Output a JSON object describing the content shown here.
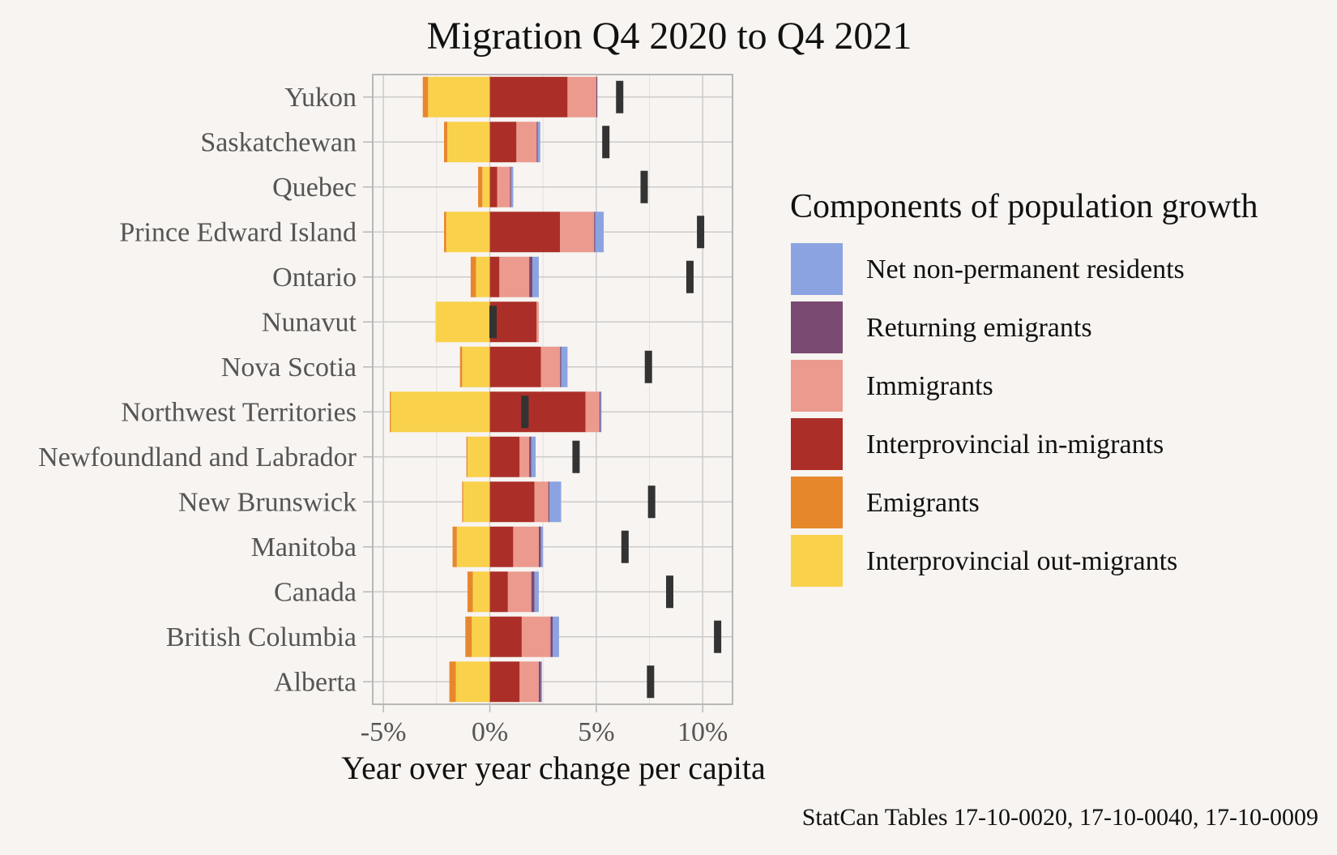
{
  "colors": {
    "background": "#f7f4f1",
    "grid": "#cccccc",
    "panel_border": "#b8b8b8",
    "net_change_marker": "#333333",
    "tick_label": "#555555"
  },
  "chart_data": {
    "type": "bar",
    "orientation": "horizontal",
    "stacked": "diverging",
    "title": "Migration Q4 2020 to Q4 2021",
    "xlabel": "Year over year change per capita",
    "ylabel": "",
    "caption": "StatCan Tables 17-10-0020, 17-10-0040, 17-10-0009",
    "xlim": [
      -5.5,
      11.4
    ],
    "x_ticks": [
      -5,
      0,
      5,
      10
    ],
    "x_tick_labels": [
      "-5%",
      "0%",
      "5%",
      "10%"
    ],
    "unit": "%",
    "grid": true,
    "legend_title": "Components of population growth",
    "legend_position": "right",
    "categories": [
      "Yukon",
      "Saskatchewan",
      "Quebec",
      "Prince Edward Island",
      "Ontario",
      "Nunavut",
      "Nova Scotia",
      "Northwest Territories",
      "Newfoundland and Labrador",
      "New Brunswick",
      "Manitoba",
      "Canada",
      "British Columbia",
      "Alberta"
    ],
    "series": [
      {
        "name": "Net non-permanent residents",
        "color": "#8ba3e0",
        "values": [
          0.0,
          0.12,
          0.1,
          0.4,
          0.3,
          0.0,
          0.3,
          0.05,
          0.2,
          0.55,
          0.1,
          0.2,
          0.3,
          0.05
        ]
      },
      {
        "name": "Returning emigrants",
        "color": "#7b4a73",
        "values": [
          0.05,
          0.05,
          0.05,
          0.05,
          0.15,
          0.0,
          0.05,
          0.05,
          0.1,
          0.05,
          0.1,
          0.15,
          0.1,
          0.1
        ]
      },
      {
        "name": "Immigrants",
        "color": "#ec9a8e",
        "values": [
          1.35,
          0.95,
          0.6,
          1.6,
          1.4,
          0.1,
          0.9,
          0.65,
          0.45,
          0.65,
          1.2,
          1.1,
          1.35,
          0.9
        ]
      },
      {
        "name": "Interprovincial in-migrants",
        "color": "#ab2f28",
        "values": [
          3.65,
          1.25,
          0.35,
          3.3,
          0.45,
          2.2,
          2.4,
          4.5,
          1.4,
          2.1,
          1.1,
          0.85,
          1.5,
          1.4
        ]
      },
      {
        "name": "Emigrants",
        "color": "#e7872c",
        "values": [
          -0.25,
          -0.15,
          -0.2,
          -0.1,
          -0.25,
          0.0,
          -0.1,
          -0.05,
          -0.05,
          -0.05,
          -0.2,
          -0.25,
          -0.3,
          -0.3
        ]
      },
      {
        "name": "Interprovincial out-migrants",
        "color": "#f9d14b",
        "values": [
          -2.9,
          -2.0,
          -0.35,
          -2.05,
          -0.65,
          -2.55,
          -1.3,
          -4.65,
          -1.05,
          -1.25,
          -1.55,
          -0.8,
          -0.85,
          -1.6
        ]
      }
    ],
    "net_change": [
      6.1,
      5.45,
      7.25,
      9.9,
      9.4,
      0.15,
      7.45,
      1.65,
      4.05,
      7.6,
      6.35,
      8.45,
      10.7,
      7.55
    ]
  }
}
